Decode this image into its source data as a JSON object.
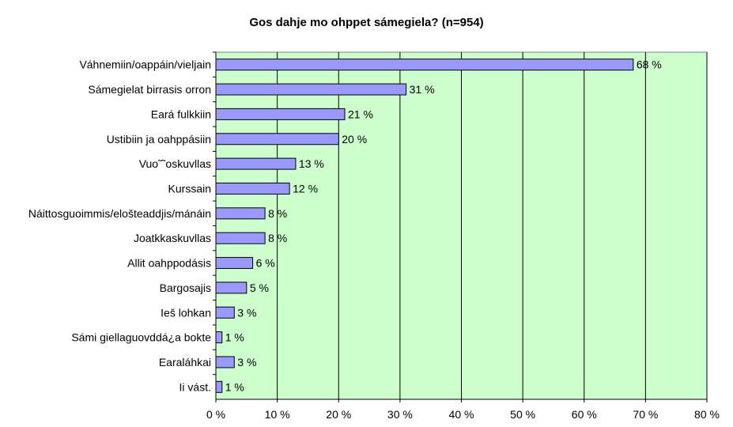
{
  "chart_data": {
    "type": "bar",
    "orientation": "horizontal",
    "title": "Gos dahje mo ohppet sámegiela? (n=954)",
    "categories": [
      "Váhnemiin/oappáin/vieljain",
      "Sámegielat birrasis orron",
      "Eará fulkkiin",
      "Ustibiin ja oahppásiin",
      "Vuo˜˜oskuvllas",
      "Kurssain",
      "Náittosguoimmis/elošteaddjis/mánáin",
      "Joatkkaskuvllas",
      "Allit oahppodásis",
      "Bargosajis",
      "Ieš lohkan",
      "Sámi giellaguovddá¿a bokte",
      "Earaláhkai",
      "Ii vást."
    ],
    "values": [
      68,
      31,
      21,
      20,
      13,
      12,
      8,
      8,
      6,
      5,
      3,
      1,
      3,
      1
    ],
    "value_labels": [
      "68 %",
      "31 %",
      "21 %",
      "20 %",
      "13 %",
      "12 %",
      "8 %",
      "8 %",
      "6 %",
      "5 %",
      "3 %",
      "1 %",
      "3 %",
      "1 %"
    ],
    "xlim": [
      0,
      80
    ],
    "xticks": [
      0,
      10,
      20,
      30,
      40,
      50,
      60,
      70,
      80
    ],
    "xtick_labels": [
      "0 %",
      "10 %",
      "20 %",
      "30 %",
      "40 %",
      "50 %",
      "60 %",
      "70 %",
      "80 %"
    ],
    "grid": "vertical",
    "colors": {
      "plot_background": "#ccffcc",
      "bar_fill": "#9999ff",
      "bar_stroke": "#000000",
      "gridline": "#000000"
    }
  }
}
